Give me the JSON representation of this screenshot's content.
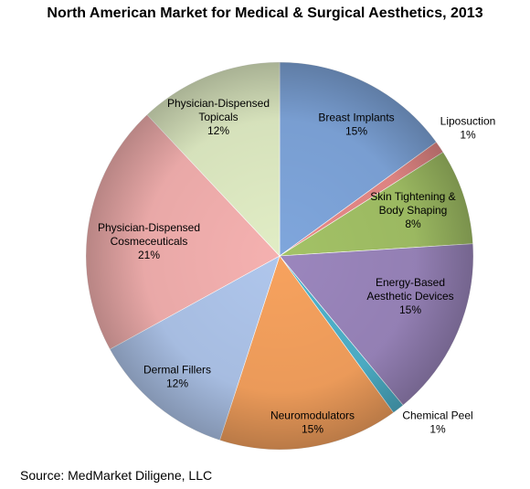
{
  "chart_data": {
    "type": "pie",
    "title": "North American Market for Medical & Surgical Aesthetics, 2013",
    "slices": [
      {
        "name": "Breast Implants",
        "value": 15,
        "value_label": "15%",
        "color": "#7fa6dc"
      },
      {
        "name": "Liposuction",
        "value": 1,
        "value_label": "1%",
        "color": "#e88a88"
      },
      {
        "name": "Skin Tightening & Body Shaping",
        "value": 8,
        "value_label": "8%",
        "color": "#a3c266"
      },
      {
        "name": "Energy-Based Aesthetic Devices",
        "value": 15,
        "value_label": "15%",
        "color": "#9b86bd"
      },
      {
        "name": "Chemical Peel",
        "value": 1,
        "value_label": "1%",
        "color": "#4fb3cc"
      },
      {
        "name": "Neuromodulators",
        "value": 15,
        "value_label": "15%",
        "color": "#f7a25e"
      },
      {
        "name": "Dermal Fillers",
        "value": 12,
        "value_label": "12%",
        "color": "#afc6ec"
      },
      {
        "name": "Physician-Dispensed Cosmeceuticals",
        "value": 21,
        "value_label": "21%",
        "color": "#f5b1b0"
      },
      {
        "name": "Physician-Dispensed Topicals",
        "value": 12,
        "value_label": "12%",
        "color": "#e1edc5"
      }
    ]
  },
  "source": "Source: MedMarket Diligene, LLC"
}
